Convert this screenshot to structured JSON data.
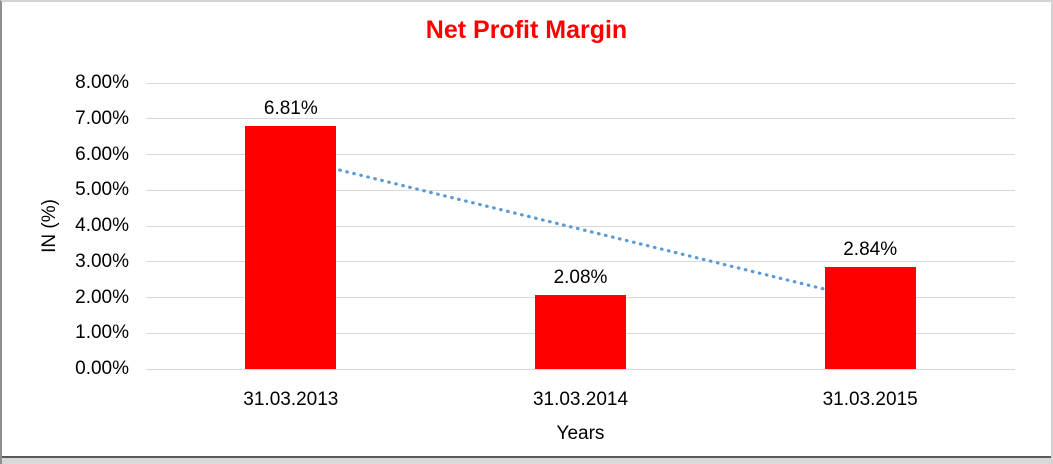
{
  "chart_data": {
    "type": "bar",
    "title": "Net Profit Margin",
    "categories": [
      "31.03.2013",
      "31.03.2014",
      "31.03.2015"
    ],
    "values": [
      6.81,
      2.08,
      2.84
    ],
    "data_labels": [
      "6.81%",
      "2.08%",
      "2.84%"
    ],
    "xlabel": "Years",
    "ylabel": "IN (%)",
    "ylim": [
      0,
      8
    ],
    "ytick_labels": [
      "0.00%",
      "1.00%",
      "2.00%",
      "3.00%",
      "4.00%",
      "5.00%",
      "6.00%",
      "7.00%",
      "8.00%"
    ],
    "grid": true,
    "legend": "none",
    "trendline": {
      "type": "linear",
      "style": "dotted",
      "start_value": 5.9,
      "end_value": 1.92
    },
    "colors": {
      "bar": "#FF0000",
      "title": "#FF0000",
      "trendline": "#5B9BD5",
      "gridline": "#D9D9D9",
      "text": "#000000"
    }
  }
}
